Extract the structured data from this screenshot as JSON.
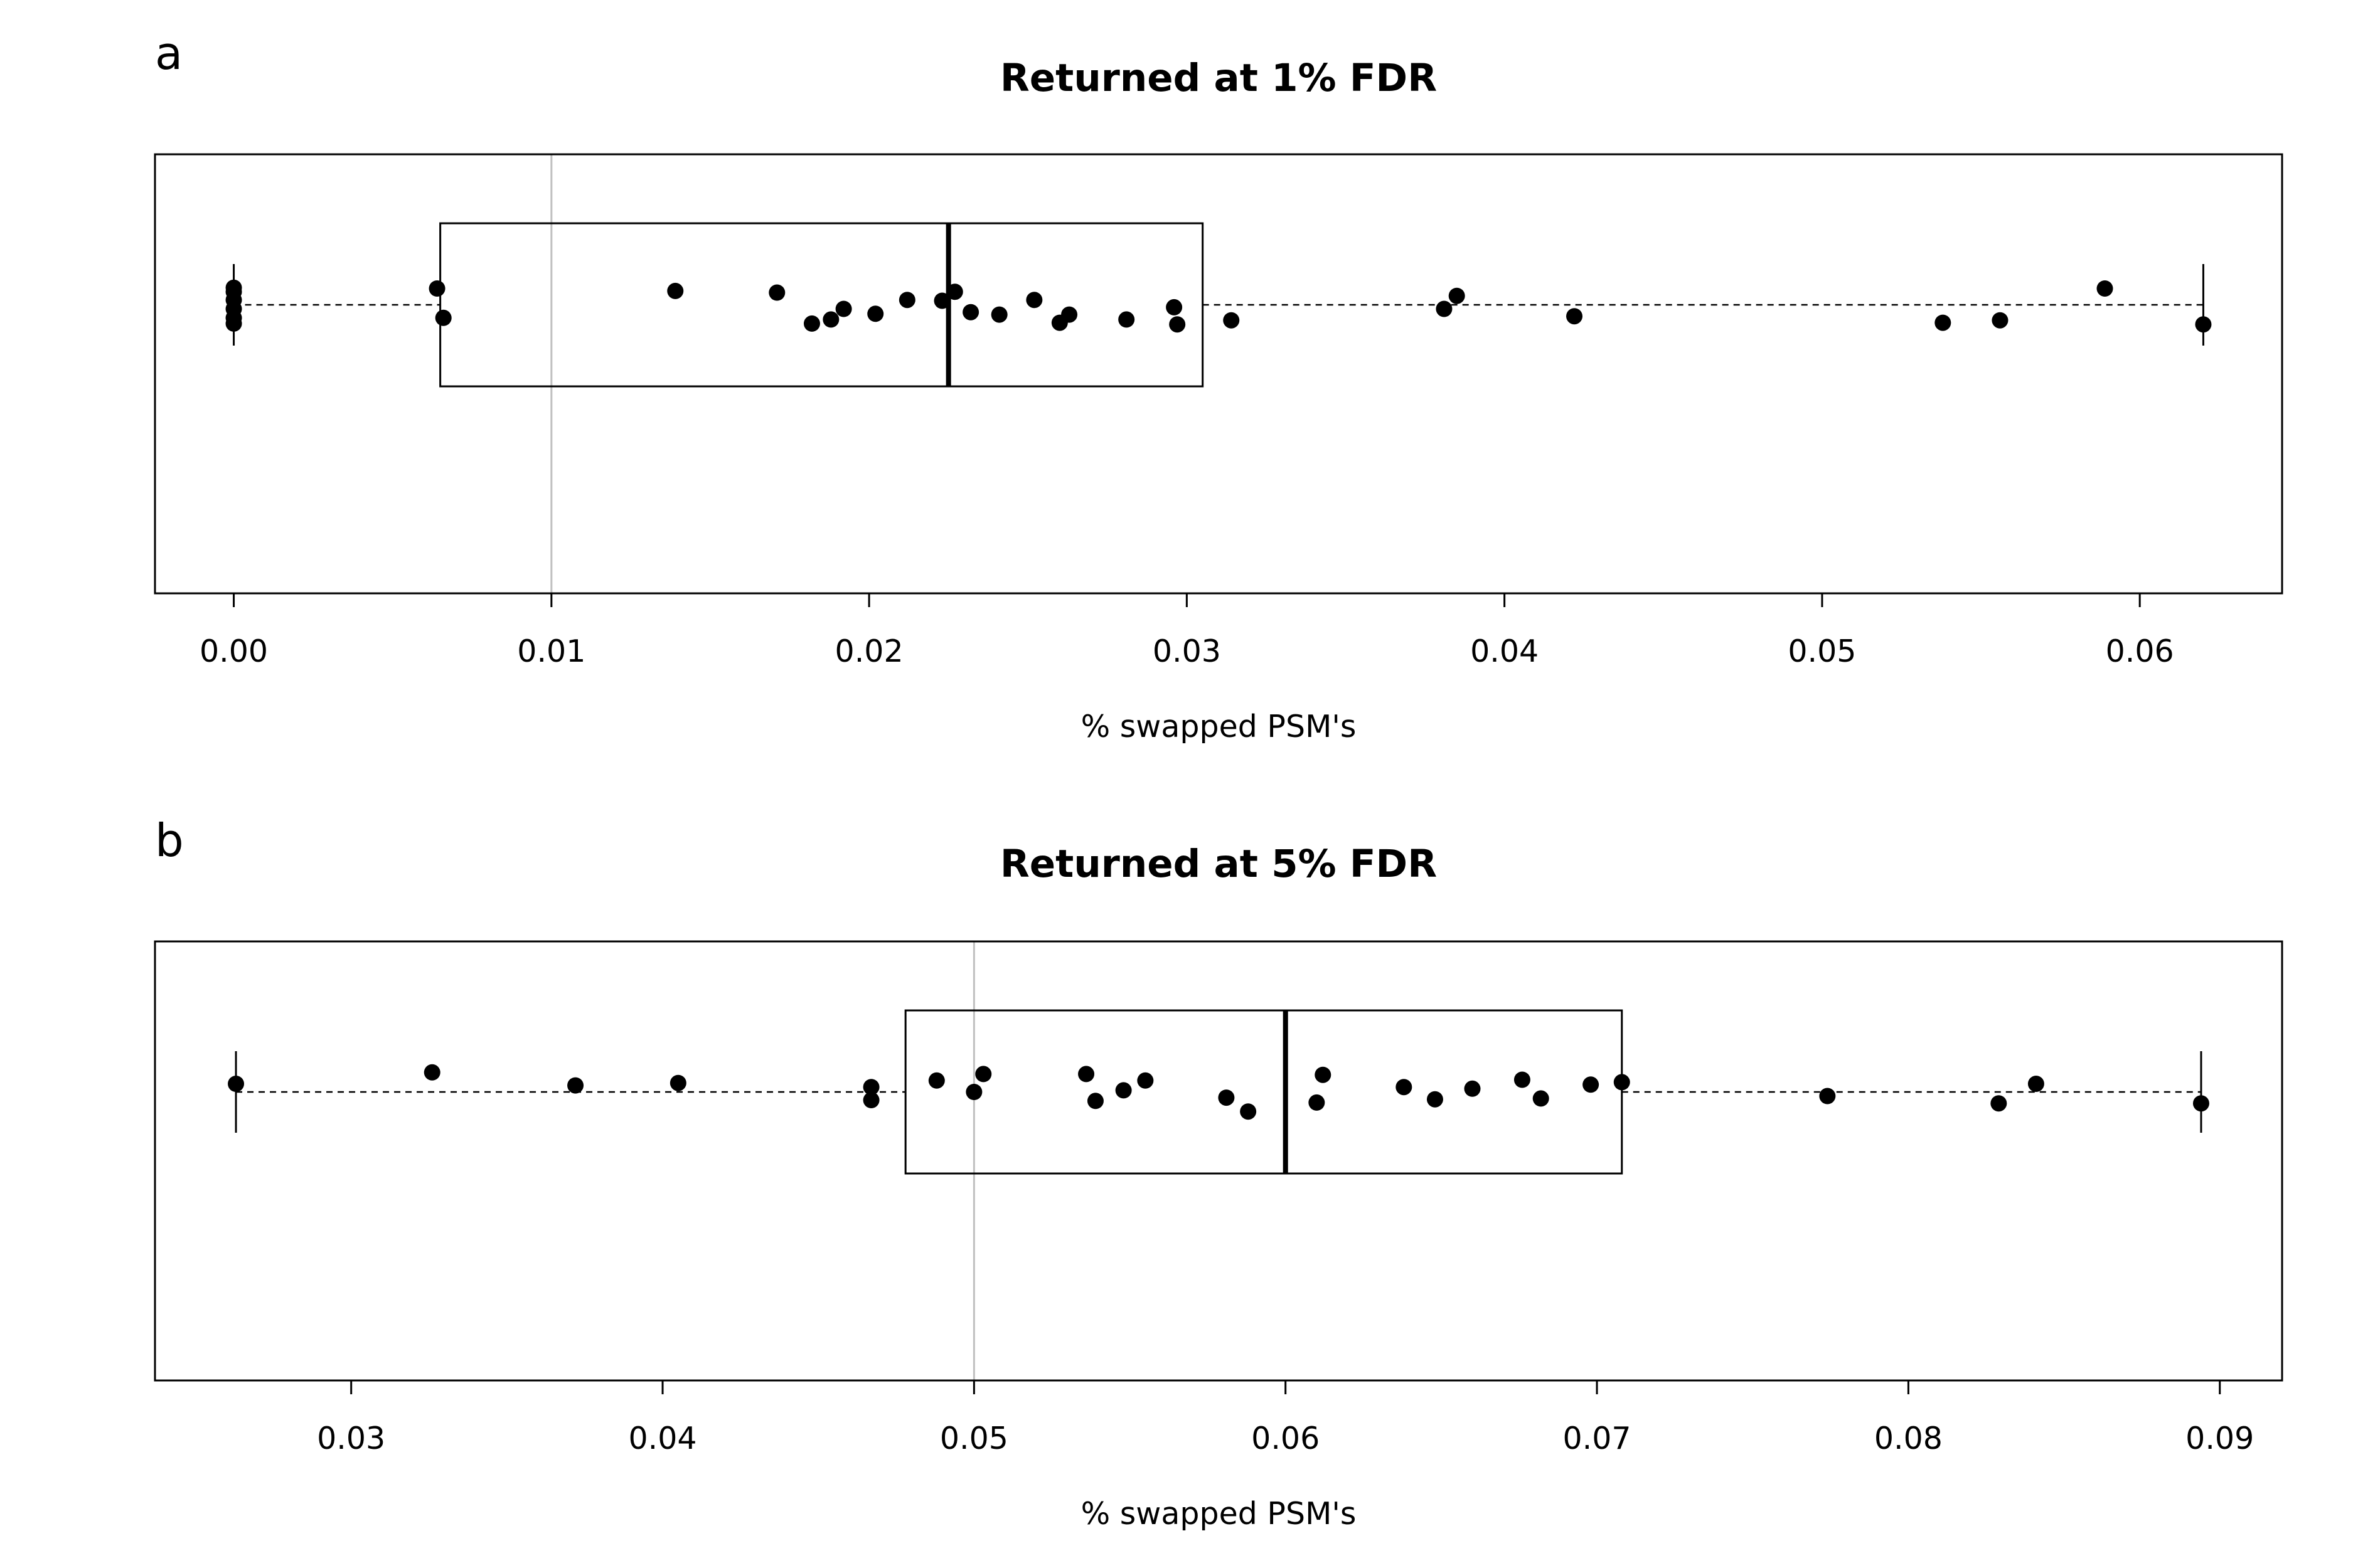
{
  "chart_data": [
    {
      "type": "box",
      "panel_label": "a",
      "title": "Returned at 1% FDR",
      "xlabel": "% swapped PSM's",
      "xlim": [
        -0.00248,
        0.06448
      ],
      "xticks": [
        0.0,
        0.01,
        0.02,
        0.03,
        0.04,
        0.05,
        0.06
      ],
      "xtick_labels": [
        "0.00",
        "0.01",
        "0.02",
        "0.03",
        "0.04",
        "0.05",
        "0.06"
      ],
      "reference_line": 0.01,
      "box": {
        "whisker_low": 0.0,
        "q1": 0.0065,
        "median": 0.0225,
        "q3": 0.0305,
        "whisker_high": 0.062
      },
      "points": [
        {
          "x": 0.0,
          "jitter": 0.21
        },
        {
          "x": 0.0,
          "jitter": 0.16
        },
        {
          "x": 0.0,
          "jitter": 0.06
        },
        {
          "x": 0.0,
          "jitter": -0.05
        },
        {
          "x": 0.0,
          "jitter": -0.16
        },
        {
          "x": 0.0,
          "jitter": -0.23
        },
        {
          "x": 0.0064,
          "jitter": 0.2
        },
        {
          "x": 0.0066,
          "jitter": -0.16
        },
        {
          "x": 0.0139,
          "jitter": 0.17
        },
        {
          "x": 0.0171,
          "jitter": 0.15
        },
        {
          "x": 0.0182,
          "jitter": -0.23
        },
        {
          "x": 0.0188,
          "jitter": -0.18
        },
        {
          "x": 0.0192,
          "jitter": -0.05
        },
        {
          "x": 0.0202,
          "jitter": -0.11
        },
        {
          "x": 0.0212,
          "jitter": 0.06
        },
        {
          "x": 0.0223,
          "jitter": 0.05
        },
        {
          "x": 0.0227,
          "jitter": 0.16
        },
        {
          "x": 0.0232,
          "jitter": -0.09
        },
        {
          "x": 0.0241,
          "jitter": -0.12
        },
        {
          "x": 0.0252,
          "jitter": 0.06
        },
        {
          "x": 0.026,
          "jitter": -0.22
        },
        {
          "x": 0.0263,
          "jitter": -0.12
        },
        {
          "x": 0.0281,
          "jitter": -0.18
        },
        {
          "x": 0.0296,
          "jitter": -0.03
        },
        {
          "x": 0.0297,
          "jitter": -0.24
        },
        {
          "x": 0.0314,
          "jitter": -0.19
        },
        {
          "x": 0.0381,
          "jitter": -0.05
        },
        {
          "x": 0.0385,
          "jitter": 0.11
        },
        {
          "x": 0.0422,
          "jitter": -0.14
        },
        {
          "x": 0.0538,
          "jitter": -0.22
        },
        {
          "x": 0.0556,
          "jitter": -0.19
        },
        {
          "x": 0.0589,
          "jitter": 0.2
        },
        {
          "x": 0.062,
          "jitter": -0.24
        }
      ]
    },
    {
      "type": "box",
      "panel_label": "b",
      "title": "Returned at 5% FDR",
      "xlabel": "% swapped PSM's",
      "xlim": [
        0.0237,
        0.092
      ],
      "xticks": [
        0.03,
        0.04,
        0.05,
        0.06,
        0.07,
        0.08,
        0.09
      ],
      "xtick_labels": [
        "0.03",
        "0.04",
        "0.05",
        "0.06",
        "0.07",
        "0.08",
        "0.09"
      ],
      "reference_line": 0.05,
      "box": {
        "whisker_low": 0.0263,
        "q1": 0.0478,
        "median": 0.06,
        "q3": 0.0708,
        "whisker_high": 0.0894
      },
      "points": [
        {
          "x": 0.0263,
          "jitter": 0.1
        },
        {
          "x": 0.0326,
          "jitter": 0.24
        },
        {
          "x": 0.0372,
          "jitter": 0.08
        },
        {
          "x": 0.0405,
          "jitter": 0.11
        },
        {
          "x": 0.0467,
          "jitter": 0.06
        },
        {
          "x": 0.0467,
          "jitter": -0.1
        },
        {
          "x": 0.0488,
          "jitter": 0.14
        },
        {
          "x": 0.05,
          "jitter": 0.0
        },
        {
          "x": 0.0503,
          "jitter": 0.22
        },
        {
          "x": 0.0536,
          "jitter": 0.22
        },
        {
          "x": 0.0539,
          "jitter": -0.11
        },
        {
          "x": 0.0548,
          "jitter": 0.02
        },
        {
          "x": 0.0555,
          "jitter": 0.14
        },
        {
          "x": 0.0581,
          "jitter": -0.07
        },
        {
          "x": 0.0588,
          "jitter": -0.24
        },
        {
          "x": 0.061,
          "jitter": -0.13
        },
        {
          "x": 0.0612,
          "jitter": 0.21
        },
        {
          "x": 0.0638,
          "jitter": 0.06
        },
        {
          "x": 0.0648,
          "jitter": -0.09
        },
        {
          "x": 0.066,
          "jitter": 0.04
        },
        {
          "x": 0.0676,
          "jitter": 0.15
        },
        {
          "x": 0.0682,
          "jitter": -0.08
        },
        {
          "x": 0.0698,
          "jitter": 0.09
        },
        {
          "x": 0.0708,
          "jitter": 0.12
        },
        {
          "x": 0.0774,
          "jitter": -0.05
        },
        {
          "x": 0.0829,
          "jitter": -0.14
        },
        {
          "x": 0.0841,
          "jitter": 0.1
        },
        {
          "x": 0.0894,
          "jitter": -0.14
        }
      ]
    }
  ]
}
